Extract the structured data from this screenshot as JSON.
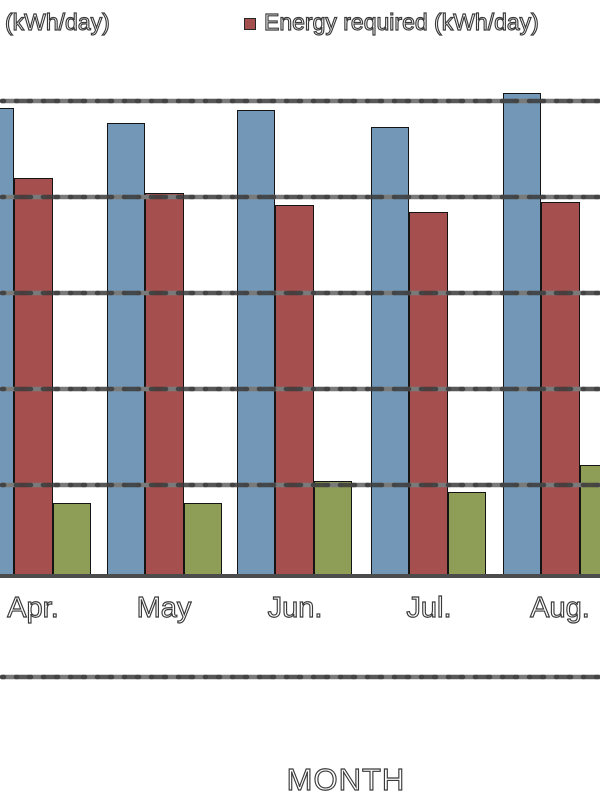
{
  "legend": {
    "left_label": "(kWh/day)",
    "right_label": "Energy required (kWh/day)",
    "swatch_color": "#a4504f"
  },
  "axis": {
    "x_title": "MONTH"
  },
  "chart_data": {
    "type": "bar",
    "categories": [
      "Apr.",
      "May",
      "Jun.",
      "Jul.",
      "Aug."
    ],
    "series": [
      {
        "name": "(kWh/day)",
        "color": "#7397b6",
        "values": [
          4.87,
          4.72,
          4.85,
          4.68,
          5.03
        ]
      },
      {
        "name": "Energy required (kWh/day)",
        "color": "#a54f4f",
        "values": [
          4.15,
          3.99,
          3.86,
          3.79,
          3.9
        ]
      },
      {
        "name": "",
        "color": "#8e9e57",
        "values": [
          0.76,
          0.76,
          0.99,
          0.87,
          1.16
        ]
      }
    ],
    "xlabel": "MONTH",
    "ylabel": "",
    "ylim": [
      -1,
      5.3
    ],
    "gridline_values": [
      5,
      4,
      3,
      2,
      1,
      -1
    ],
    "baseline_value": 0,
    "grid_style": "dashed",
    "legend_position": "top",
    "notes": "left edge of chart cropped; first legend entry and first blue bar partially cut off"
  }
}
